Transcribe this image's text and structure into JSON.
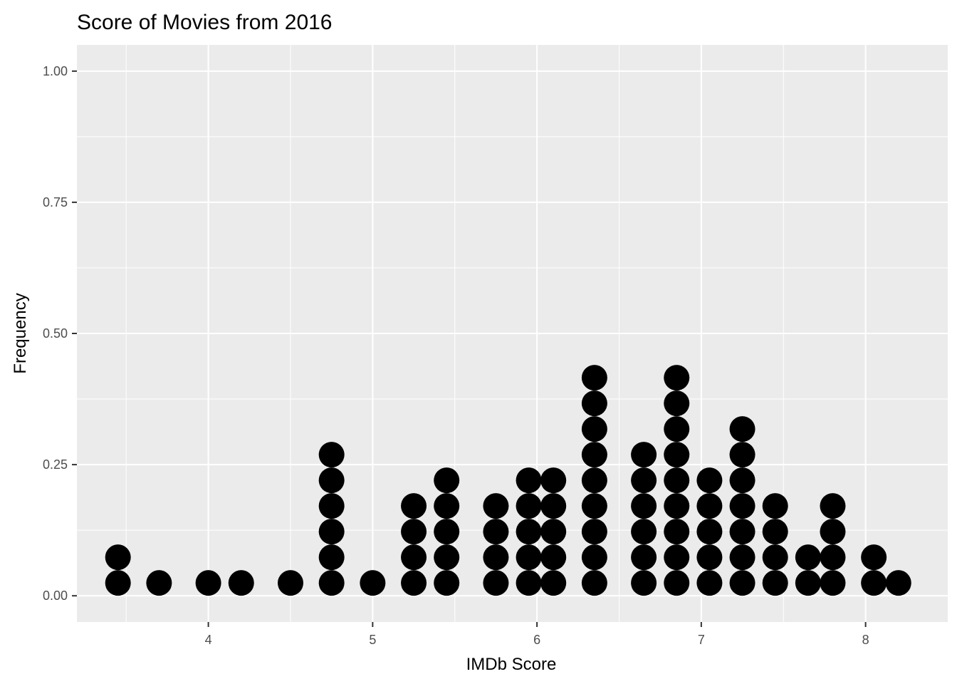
{
  "chart_data": {
    "type": "dotplot",
    "title": "Score of Movies from 2016",
    "xlabel": "IMDb Score",
    "ylabel": "Frequency",
    "xlim": [
      3.2,
      8.5
    ],
    "ylim": [
      -0.05,
      1.05
    ],
    "x_ticks": [
      4,
      5,
      6,
      7,
      8
    ],
    "x_tick_labels": [
      "4",
      "5",
      "6",
      "7",
      "8"
    ],
    "y_ticks": [
      0.0,
      0.25,
      0.5,
      0.75,
      1.0
    ],
    "y_tick_labels": [
      "0.00",
      "0.25",
      "0.50",
      "0.75",
      "1.00"
    ],
    "grid": true,
    "dot_color": "#000000",
    "panel_background": "#ebebeb",
    "grid_color": "#ffffff",
    "stack_step": 0.0489,
    "dot_diameter_data": 0.0489,
    "stacks": [
      {
        "x": 3.45,
        "count": 2
      },
      {
        "x": 3.7,
        "count": 1
      },
      {
        "x": 4.0,
        "count": 1
      },
      {
        "x": 4.2,
        "count": 1
      },
      {
        "x": 4.5,
        "count": 1
      },
      {
        "x": 4.75,
        "count": 6
      },
      {
        "x": 5.0,
        "count": 1
      },
      {
        "x": 5.25,
        "count": 4
      },
      {
        "x": 5.45,
        "count": 5
      },
      {
        "x": 5.75,
        "count": 4
      },
      {
        "x": 5.95,
        "count": 5
      },
      {
        "x": 6.1,
        "count": 5
      },
      {
        "x": 6.35,
        "count": 9
      },
      {
        "x": 6.65,
        "count": 6
      },
      {
        "x": 6.85,
        "count": 9
      },
      {
        "x": 7.05,
        "count": 5
      },
      {
        "x": 7.25,
        "count": 7
      },
      {
        "x": 7.45,
        "count": 4
      },
      {
        "x": 7.65,
        "count": 2
      },
      {
        "x": 7.8,
        "count": 4
      },
      {
        "x": 8.05,
        "count": 2
      },
      {
        "x": 8.2,
        "count": 1
      }
    ]
  }
}
